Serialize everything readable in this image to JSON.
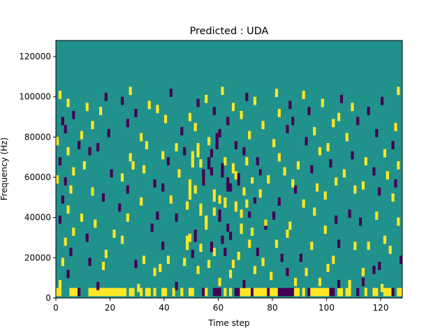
{
  "chart_data": {
    "type": "heatmap",
    "title": "Predicted : UDA",
    "xlabel": "Time step",
    "ylabel": "Frequency (Hz)",
    "xlim": [
      0,
      128
    ],
    "ylim": [
      0,
      128000
    ],
    "x_ticks": [
      0,
      20,
      40,
      60,
      80,
      100,
      120
    ],
    "y_ticks": [
      0,
      20000,
      40000,
      60000,
      80000,
      100000,
      120000
    ],
    "x_tick_labels": [
      "0",
      "20",
      "40",
      "60",
      "80",
      "100",
      "120"
    ],
    "y_tick_labels": [
      "0",
      "20000",
      "40000",
      "60000",
      "80000",
      "100000",
      "120000"
    ],
    "colors": {
      "background": "#21918c",
      "high": "#fde725",
      "low": "#440154"
    },
    "sparse_cells": [
      [
        0,
        1,
        2
      ],
      [
        1,
        1,
        2
      ],
      [
        5,
        1,
        2
      ],
      [
        6,
        1,
        2
      ],
      [
        7,
        1,
        2
      ],
      [
        8,
        1,
        1
      ],
      [
        12,
        1,
        2
      ],
      [
        13,
        1,
        2
      ],
      [
        14,
        1,
        2
      ],
      [
        15,
        1,
        2
      ],
      [
        16,
        1,
        2
      ],
      [
        17,
        1,
        2
      ],
      [
        18,
        1,
        2
      ],
      [
        19,
        1,
        2
      ],
      [
        20,
        1,
        2
      ],
      [
        21,
        1,
        2
      ],
      [
        22,
        1,
        2
      ],
      [
        23,
        1,
        2
      ],
      [
        24,
        1,
        2
      ],
      [
        25,
        1,
        2
      ],
      [
        27,
        1,
        2
      ],
      [
        28,
        1,
        2
      ],
      [
        31,
        1,
        2
      ],
      [
        33,
        1,
        2
      ],
      [
        34,
        1,
        2
      ],
      [
        36,
        1,
        2
      ],
      [
        39,
        1,
        2
      ],
      [
        40,
        1,
        2
      ],
      [
        43,
        1,
        2
      ],
      [
        46,
        1,
        2
      ],
      [
        49,
        1,
        2
      ],
      [
        50,
        1,
        2
      ],
      [
        54,
        1,
        1
      ],
      [
        55,
        1,
        2
      ],
      [
        58,
        1,
        1
      ],
      [
        59,
        1,
        1
      ],
      [
        60,
        1,
        1
      ],
      [
        62,
        1,
        2
      ],
      [
        64,
        1,
        2
      ],
      [
        66,
        1,
        1
      ],
      [
        67,
        1,
        1
      ],
      [
        68,
        1,
        2
      ],
      [
        69,
        1,
        2
      ],
      [
        70,
        1,
        2
      ],
      [
        71,
        1,
        2
      ],
      [
        72,
        1,
        1
      ],
      [
        73,
        1,
        2
      ],
      [
        74,
        1,
        2
      ],
      [
        75,
        1,
        2
      ],
      [
        76,
        1,
        2
      ],
      [
        77,
        1,
        2
      ],
      [
        78,
        1,
        1
      ],
      [
        79,
        1,
        2
      ],
      [
        80,
        1,
        2
      ],
      [
        81,
        1,
        2
      ],
      [
        82,
        1,
        1
      ],
      [
        83,
        1,
        1
      ],
      [
        84,
        1,
        1
      ],
      [
        85,
        1,
        1
      ],
      [
        86,
        1,
        1
      ],
      [
        87,
        1,
        1
      ],
      [
        88,
        1,
        2
      ],
      [
        89,
        1,
        2
      ],
      [
        91,
        1,
        2
      ],
      [
        93,
        1,
        1
      ],
      [
        94,
        1,
        2
      ],
      [
        95,
        1,
        2
      ],
      [
        96,
        1,
        2
      ],
      [
        97,
        1,
        2
      ],
      [
        98,
        1,
        2
      ],
      [
        99,
        1,
        2
      ],
      [
        100,
        1,
        2
      ],
      [
        101,
        1,
        1
      ],
      [
        102,
        1,
        1
      ],
      [
        104,
        1,
        2
      ],
      [
        105,
        1,
        2
      ],
      [
        107,
        1,
        2
      ],
      [
        108,
        1,
        2
      ],
      [
        111,
        1,
        1
      ],
      [
        114,
        1,
        2
      ],
      [
        117,
        1,
        2
      ],
      [
        118,
        1,
        2
      ],
      [
        121,
        1,
        2
      ],
      [
        122,
        1,
        2
      ],
      [
        123,
        1,
        2
      ],
      [
        124,
        1,
        1
      ],
      [
        126,
        1,
        2
      ],
      [
        127,
        1,
        2
      ],
      [
        1,
        5,
        2
      ],
      [
        15,
        4,
        1
      ],
      [
        30,
        3,
        2
      ],
      [
        44,
        4,
        1
      ],
      [
        60,
        6,
        2
      ],
      [
        69,
        5,
        1
      ],
      [
        88,
        6,
        2
      ],
      [
        97,
        6,
        2
      ],
      [
        104,
        5,
        1
      ],
      [
        108,
        5,
        2
      ],
      [
        113,
        6,
        1
      ],
      [
        120,
        3,
        2
      ],
      [
        4,
        10,
        1
      ],
      [
        17,
        14,
        2
      ],
      [
        36,
        11,
        2
      ],
      [
        52,
        12,
        2
      ],
      [
        64,
        10,
        2
      ],
      [
        73,
        12,
        2
      ],
      [
        79,
        9,
        2
      ],
      [
        85,
        11,
        1
      ],
      [
        100,
        13,
        2
      ],
      [
        113,
        11,
        2
      ],
      [
        117,
        12,
        1
      ],
      [
        2,
        16,
        2
      ],
      [
        12,
        16,
        1
      ],
      [
        29,
        15,
        1
      ],
      [
        38,
        13,
        2
      ],
      [
        47,
        16,
        2
      ],
      [
        56,
        15,
        2
      ],
      [
        65,
        15,
        2
      ],
      [
        76,
        16,
        2
      ],
      [
        83,
        18,
        1
      ],
      [
        92,
        11,
        2
      ],
      [
        119,
        14,
        1
      ],
      [
        5,
        21,
        1
      ],
      [
        18,
        20,
        2
      ],
      [
        32,
        17,
        2
      ],
      [
        41,
        17,
        2
      ],
      [
        50,
        20,
        1
      ],
      [
        58,
        21,
        2
      ],
      [
        67,
        19,
        2
      ],
      [
        74,
        21,
        1
      ],
      [
        90,
        18,
        1
      ],
      [
        102,
        17,
        2
      ],
      [
        127,
        17,
        1
      ],
      [
        3,
        26,
        2
      ],
      [
        11,
        28,
        1
      ],
      [
        24,
        27,
        2
      ],
      [
        39,
        24,
        1
      ],
      [
        53,
        23,
        2
      ],
      [
        62,
        21,
        1
      ],
      [
        71,
        25,
        2
      ],
      [
        81,
        25,
        2
      ],
      [
        94,
        24,
        2
      ],
      [
        110,
        24,
        2
      ],
      [
        123,
        22,
        2
      ],
      [
        6,
        31,
        2
      ],
      [
        21,
        30,
        2
      ],
      [
        35,
        33,
        1
      ],
      [
        49,
        28,
        2
      ],
      [
        61,
        27,
        1
      ],
      [
        72,
        31,
        2
      ],
      [
        85,
        30,
        2
      ],
      [
        99,
        32,
        2
      ],
      [
        104,
        25,
        1
      ],
      [
        115,
        24,
        2
      ],
      [
        121,
        27,
        2
      ],
      [
        1,
        37,
        1
      ],
      [
        14,
        35,
        2
      ],
      [
        26,
        38,
        2
      ],
      [
        44,
        38,
        1
      ],
      [
        55,
        36,
        2
      ],
      [
        63,
        33,
        1
      ],
      [
        77,
        34,
        1
      ],
      [
        86,
        34,
        2
      ],
      [
        103,
        37,
        1
      ],
      [
        112,
        36,
        1
      ],
      [
        126,
        36,
        2
      ],
      [
        4,
        42,
        2
      ],
      [
        9,
        38,
        2
      ],
      [
        23,
        43,
        1
      ],
      [
        37,
        39,
        1
      ],
      [
        48,
        44,
        2
      ],
      [
        58,
        41,
        2
      ],
      [
        68,
        40,
        2
      ],
      [
        80,
        39,
        1
      ],
      [
        95,
        41,
        2
      ],
      [
        108,
        40,
        1
      ],
      [
        118,
        39,
        2
      ],
      [
        2,
        47,
        1
      ],
      [
        17,
        48,
        1
      ],
      [
        31,
        46,
        2
      ],
      [
        42,
        47,
        2
      ],
      [
        53,
        43,
        1
      ],
      [
        60,
        47,
        2
      ],
      [
        70,
        45,
        2
      ],
      [
        82,
        46,
        1
      ],
      [
        91,
        45,
        2
      ],
      [
        99,
        49,
        2
      ],
      [
        124,
        48,
        2
      ],
      [
        5,
        52,
        2
      ],
      [
        13,
        51,
        2
      ],
      [
        26,
        52,
        1
      ],
      [
        39,
        53,
        1
      ],
      [
        51,
        52,
        2
      ],
      [
        64,
        53,
        1
      ],
      [
        75,
        50,
        2
      ],
      [
        88,
        52,
        1
      ],
      [
        96,
        53,
        2
      ],
      [
        110,
        52,
        2
      ],
      [
        119,
        51,
        1
      ],
      [
        0,
        57,
        2
      ],
      [
        3,
        56,
        1
      ],
      [
        24,
        58,
        2
      ],
      [
        36,
        55,
        1
      ],
      [
        54,
        57,
        2
      ],
      [
        67,
        56,
        1
      ],
      [
        78,
        57,
        2
      ],
      [
        87,
        55,
        2
      ],
      [
        103,
        56,
        2
      ],
      [
        113,
        54,
        2
      ],
      [
        125,
        55,
        1
      ],
      [
        6,
        61,
        2
      ],
      [
        20,
        60,
        1
      ],
      [
        32,
        62,
        2
      ],
      [
        45,
        60,
        2
      ],
      [
        57,
        61,
        1
      ],
      [
        66,
        59,
        2
      ],
      [
        84,
        61,
        2
      ],
      [
        94,
        62,
        1
      ],
      [
        106,
        60,
        2
      ],
      [
        117,
        61,
        1
      ],
      [
        122,
        59,
        2
      ],
      [
        1,
        66,
        1
      ],
      [
        10,
        64,
        2
      ],
      [
        28,
        64,
        2
      ],
      [
        41,
        66,
        1
      ],
      [
        53,
        65,
        2
      ],
      [
        62,
        66,
        2
      ],
      [
        74,
        66,
        1
      ],
      [
        89,
        64,
        2
      ],
      [
        101,
        65,
        1
      ],
      [
        114,
        66,
        2
      ],
      [
        126,
        64,
        2
      ],
      [
        4,
        71,
        2
      ],
      [
        12,
        71,
        1
      ],
      [
        27,
        68,
        2
      ],
      [
        39,
        69,
        2
      ],
      [
        47,
        71,
        1
      ],
      [
        57,
        70,
        1
      ],
      [
        69,
        71,
        1
      ],
      [
        82,
        68,
        2
      ],
      [
        97,
        71,
        2
      ],
      [
        109,
        69,
        1
      ],
      [
        121,
        70,
        2
      ],
      [
        0,
        76,
        2
      ],
      [
        8,
        74,
        1
      ],
      [
        15,
        73,
        1
      ],
      [
        33,
        74,
        2
      ],
      [
        44,
        73,
        2
      ],
      [
        56,
        76,
        2
      ],
      [
        66,
        74,
        1
      ],
      [
        80,
        75,
        2
      ],
      [
        92,
        76,
        1
      ],
      [
        100,
        73,
        2
      ],
      [
        124,
        74,
        1
      ],
      [
        3,
        82,
        1
      ],
      [
        9,
        79,
        2
      ],
      [
        19,
        80,
        1
      ],
      [
        31,
        78,
        2
      ],
      [
        46,
        81,
        1
      ],
      [
        60,
        80,
        1
      ],
      [
        71,
        79,
        2
      ],
      [
        85,
        82,
        1
      ],
      [
        95,
        81,
        2
      ],
      [
        107,
        78,
        2
      ],
      [
        118,
        80,
        1
      ],
      [
        2,
        86,
        1
      ],
      [
        13,
        84,
        2
      ],
      [
        26,
        85,
        1
      ],
      [
        40,
        87,
        2
      ],
      [
        51,
        83,
        2
      ],
      [
        63,
        86,
        1
      ],
      [
        76,
        84,
        2
      ],
      [
        87,
        86,
        1
      ],
      [
        102,
        85,
        2
      ],
      [
        111,
        86,
        1
      ],
      [
        125,
        83,
        2
      ],
      [
        6,
        89,
        1
      ],
      [
        16,
        91,
        2
      ],
      [
        29,
        90,
        1
      ],
      [
        37,
        92,
        2
      ],
      [
        49,
        88,
        2
      ],
      [
        58,
        91,
        1
      ],
      [
        68,
        89,
        2
      ],
      [
        82,
        90,
        2
      ],
      [
        93,
        91,
        1
      ],
      [
        104,
        88,
        2
      ],
      [
        115,
        91,
        1
      ],
      [
        4,
        95,
        2
      ],
      [
        11,
        93,
        2
      ],
      [
        24,
        96,
        1
      ],
      [
        34,
        94,
        2
      ],
      [
        52,
        95,
        1
      ],
      [
        65,
        93,
        2
      ],
      [
        73,
        96,
        2
      ],
      [
        86,
        94,
        1
      ],
      [
        98,
        95,
        2
      ],
      [
        109,
        93,
        2
      ],
      [
        120,
        96,
        1
      ],
      [
        1,
        99,
        2
      ],
      [
        18,
        98,
        1
      ],
      [
        27,
        101,
        2
      ],
      [
        42,
        100,
        1
      ],
      [
        55,
        97,
        2
      ],
      [
        61,
        101,
        2
      ],
      [
        70,
        98,
        1
      ],
      [
        81,
        100,
        2
      ],
      [
        91,
        99,
        2
      ],
      [
        105,
        97,
        1
      ],
      [
        126,
        101,
        2
      ]
    ],
    "bands": [
      [
        48,
        24,
        7,
        2
      ],
      [
        49,
        49,
        10,
        2
      ],
      [
        50,
        65,
        8,
        2
      ],
      [
        51,
        28,
        6,
        1
      ],
      [
        52,
        70,
        7,
        2
      ],
      [
        53,
        41,
        6,
        2
      ],
      [
        54,
        56,
        8,
        1
      ],
      [
        55,
        34,
        7,
        2
      ],
      [
        56,
        64,
        6,
        1
      ],
      [
        57,
        23,
        5,
        1
      ],
      [
        58,
        48,
        6,
        2
      ],
      [
        59,
        74,
        8,
        1
      ],
      [
        60,
        38,
        6,
        1
      ],
      [
        61,
        60,
        7,
        1
      ],
      [
        62,
        45,
        5,
        2
      ],
      [
        63,
        53,
        7,
        1
      ],
      [
        64,
        29,
        4,
        1
      ],
      [
        65,
        62,
        5,
        2
      ],
      [
        66,
        43,
        5,
        2
      ],
      [
        67,
        58,
        4,
        1
      ],
      [
        68,
        32,
        5,
        2
      ],
      [
        69,
        51,
        4,
        2
      ],
      [
        70,
        66,
        4,
        2
      ],
      [
        71,
        40,
        3,
        1
      ],
      [
        72,
        57,
        3,
        2
      ],
      [
        73,
        47,
        3,
        1
      ],
      [
        75,
        61,
        3,
        1
      ],
      [
        77,
        36,
        3,
        2
      ]
    ]
  }
}
